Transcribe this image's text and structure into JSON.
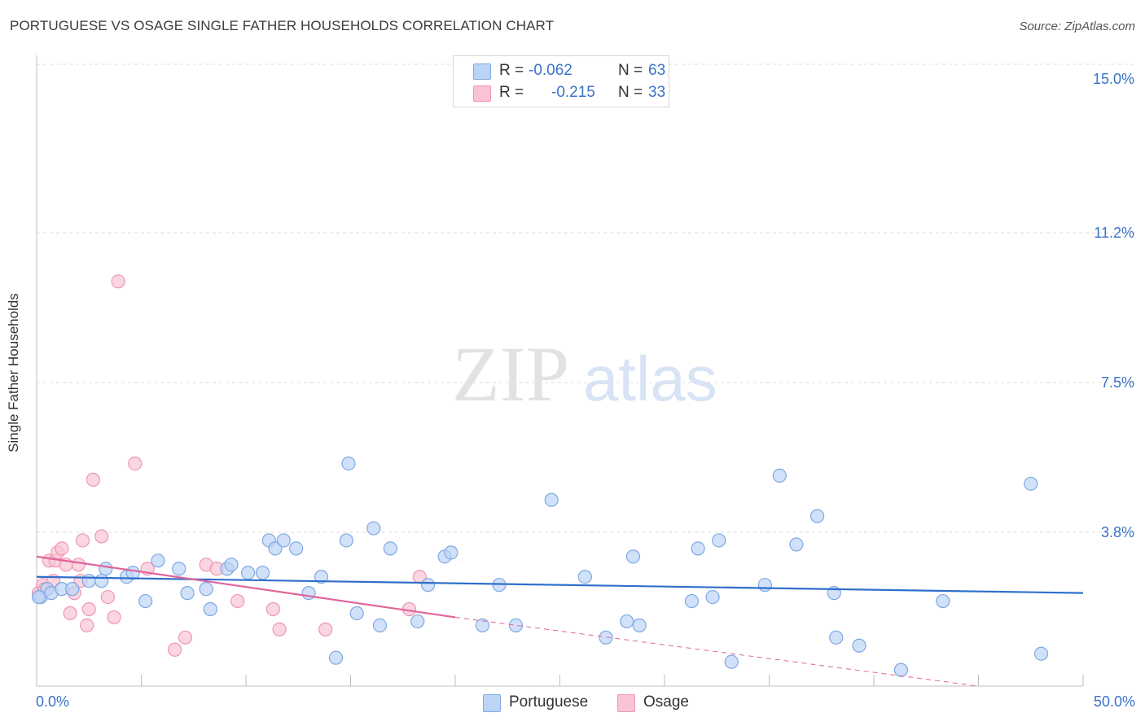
{
  "title": "PORTUGUESE VS OSAGE SINGLE FATHER HOUSEHOLDS CORRELATION CHART",
  "source": "Source: ZipAtlas.com",
  "watermark": {
    "zip": "ZIP",
    "atlas": "atlas"
  },
  "legend": {
    "rows": [
      {
        "r_label": "R =",
        "r_value": "-0.062",
        "n_label": "N =",
        "n_value": "63"
      },
      {
        "r_label": "R =",
        "r_value": "-0.215",
        "n_label": "N =",
        "n_value": "33"
      }
    ]
  },
  "bottom_legend": {
    "portuguese": "Portuguese",
    "osage": "Osage"
  },
  "colors": {
    "portuguese_fill": "#bcd4f6",
    "portuguese_stroke": "#7fa8e0",
    "portuguese_line": "#2f6fcc",
    "osage_fill": "#f8c4d4",
    "osage_stroke": "#ee96b4",
    "osage_line": "#e0649a",
    "grid": "#dddddd",
    "axis_text": "#3a72c8"
  },
  "chart_data": {
    "type": "scatter",
    "title": "PORTUGUESE VS OSAGE SINGLE FATHER HOUSEHOLDS CORRELATION CHART",
    "xlabel": "",
    "ylabel": "Single Father Households",
    "xlim": [
      0,
      50
    ],
    "ylim": [
      0,
      15
    ],
    "x_tick_labels": [
      "0.0%",
      "50.0%"
    ],
    "y_ticks": [
      3.8,
      7.5,
      11.2,
      15.0
    ],
    "y_tick_labels": [
      "3.8%",
      "7.5%",
      "11.2%",
      "15.0%"
    ],
    "series": [
      {
        "name": "Portuguese",
        "R": -0.062,
        "N": 63,
        "trend": {
          "x": [
            0,
            50
          ],
          "y": [
            2.7,
            2.3
          ]
        },
        "points": [
          [
            0.2,
            2.2
          ],
          [
            0.5,
            2.4
          ],
          [
            0.7,
            2.3
          ],
          [
            1.2,
            2.4
          ],
          [
            1.7,
            2.4
          ],
          [
            2.5,
            2.6
          ],
          [
            3.3,
            2.9
          ],
          [
            3.1,
            2.6
          ],
          [
            4.3,
            2.7
          ],
          [
            4.6,
            2.8
          ],
          [
            5.2,
            2.1
          ],
          [
            5.8,
            3.1
          ],
          [
            6.8,
            2.9
          ],
          [
            7.2,
            2.3
          ],
          [
            8.1,
            2.4
          ],
          [
            8.3,
            1.9
          ],
          [
            9.1,
            2.9
          ],
          [
            9.3,
            3.0
          ],
          [
            10.1,
            2.8
          ],
          [
            10.8,
            2.8
          ],
          [
            11.1,
            3.6
          ],
          [
            11.4,
            3.4
          ],
          [
            11.8,
            3.6
          ],
          [
            12.4,
            3.4
          ],
          [
            13.0,
            2.3
          ],
          [
            13.6,
            2.7
          ],
          [
            14.3,
            0.7
          ],
          [
            14.8,
            3.6
          ],
          [
            14.9,
            5.5
          ],
          [
            15.3,
            1.8
          ],
          [
            16.1,
            3.9
          ],
          [
            16.4,
            1.5
          ],
          [
            16.9,
            3.4
          ],
          [
            18.2,
            1.6
          ],
          [
            18.7,
            2.5
          ],
          [
            19.5,
            3.2
          ],
          [
            19.8,
            3.3
          ],
          [
            21.3,
            1.5
          ],
          [
            22.1,
            2.5
          ],
          [
            22.9,
            1.5
          ],
          [
            24.6,
            4.6
          ],
          [
            26.2,
            2.7
          ],
          [
            27.2,
            1.2
          ],
          [
            28.2,
            1.6
          ],
          [
            28.5,
            3.2
          ],
          [
            28.8,
            1.5
          ],
          [
            31.3,
            2.1
          ],
          [
            31.6,
            3.4
          ],
          [
            32.3,
            2.2
          ],
          [
            32.6,
            3.6
          ],
          [
            33.2,
            0.6
          ],
          [
            34.8,
            2.5
          ],
          [
            35.5,
            5.2
          ],
          [
            36.3,
            3.5
          ],
          [
            37.3,
            4.2
          ],
          [
            38.1,
            2.3
          ],
          [
            38.2,
            1.2
          ],
          [
            39.3,
            1.0
          ],
          [
            41.3,
            0.4
          ],
          [
            43.3,
            2.1
          ],
          [
            47.5,
            5.0
          ],
          [
            48.0,
            0.8
          ],
          [
            0.1,
            2.2
          ]
        ]
      },
      {
        "name": "Osage",
        "R": -0.215,
        "N": 33,
        "trend": {
          "x": [
            0,
            20
          ],
          "y": [
            3.2,
            1.7
          ]
        },
        "trend_extended": {
          "x": [
            20,
            45
          ],
          "y": [
            1.7,
            0.0
          ]
        },
        "points": [
          [
            0.1,
            2.3
          ],
          [
            0.3,
            2.5
          ],
          [
            0.4,
            2.4
          ],
          [
            0.6,
            3.1
          ],
          [
            0.8,
            2.6
          ],
          [
            0.9,
            3.1
          ],
          [
            1.0,
            3.3
          ],
          [
            1.2,
            3.4
          ],
          [
            1.4,
            3.0
          ],
          [
            1.6,
            1.8
          ],
          [
            1.8,
            2.3
          ],
          [
            2.0,
            3.0
          ],
          [
            2.1,
            2.6
          ],
          [
            2.2,
            3.6
          ],
          [
            2.4,
            1.5
          ],
          [
            2.5,
            1.9
          ],
          [
            2.7,
            5.1
          ],
          [
            3.1,
            3.7
          ],
          [
            3.4,
            2.2
          ],
          [
            3.7,
            1.7
          ],
          [
            3.9,
            10.0
          ],
          [
            4.7,
            5.5
          ],
          [
            5.3,
            2.9
          ],
          [
            6.6,
            0.9
          ],
          [
            7.1,
            1.2
          ],
          [
            8.1,
            3.0
          ],
          [
            8.6,
            2.9
          ],
          [
            9.6,
            2.1
          ],
          [
            11.3,
            1.9
          ],
          [
            11.6,
            1.4
          ],
          [
            13.8,
            1.4
          ],
          [
            18.3,
            2.7
          ],
          [
            17.8,
            1.9
          ]
        ]
      }
    ]
  }
}
